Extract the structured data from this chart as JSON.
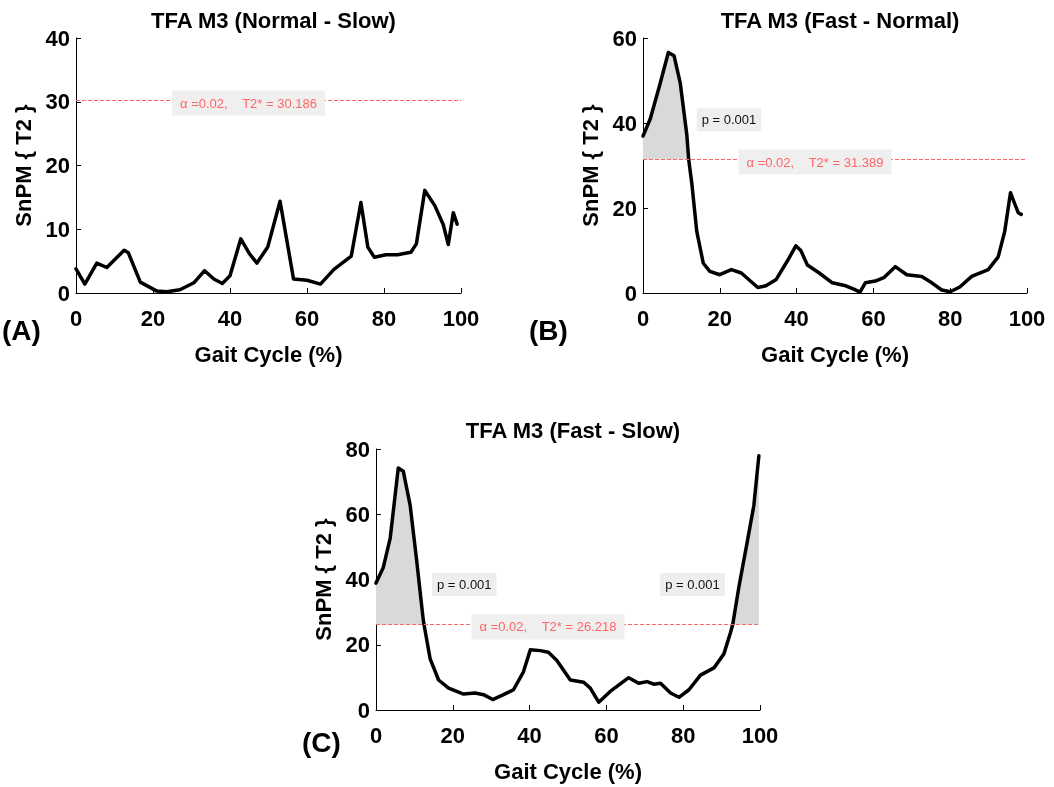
{
  "chart_data": [
    {
      "type": "line",
      "title": "TFA M3 (Normal - Slow)",
      "xlabel": "Gait Cycle (%)",
      "ylabel": "SnPM { T2 }",
      "marker": "none",
      "line_style": "solid",
      "x": [
        0,
        2.3,
        5.4,
        8,
        12.5,
        13.6,
        16.7,
        21,
        23.6,
        27,
        30.6,
        33.4,
        35.8,
        38,
        40,
        42.8,
        45,
        47,
        49.8,
        53,
        56.5,
        60,
        63.5,
        67,
        71.5,
        74,
        75.8,
        77.5,
        80.5,
        83.5,
        87,
        88.4,
        90.6,
        93.2,
        95.4,
        96.7,
        98,
        99
      ],
      "series": [
        {
          "color": "#000000",
          "values": [
            3.8,
            1.4,
            4.7,
            4,
            6.7,
            6.3,
            1.7,
            0.3,
            0.2,
            0.5,
            1.6,
            3.5,
            2.2,
            1.5,
            2.7,
            8.5,
            6.2,
            4.7,
            7.2,
            14.4,
            2.2,
            2,
            1.4,
            3.7,
            5.8,
            14.2,
            7.2,
            5.6,
            6,
            6,
            6.4,
            7.7,
            16.1,
            13.7,
            10.7,
            7.6,
            12.6,
            10.8
          ]
        }
      ],
      "xlim": [
        0,
        100
      ],
      "xticks": [
        0,
        20,
        40,
        60,
        80,
        100
      ],
      "ylim": [
        0,
        40
      ],
      "yticks": [
        0,
        10,
        20,
        30,
        40
      ],
      "ref_lines": [
        {
          "axis": "y",
          "value": 30.186,
          "label": "α =0.02,    T2* = 30.186",
          "color": "#ff6666",
          "line_style": "dashed"
        }
      ],
      "annotations": [
        "(A)"
      ]
    },
    {
      "type": "line",
      "title": "TFA M3 (Fast - Normal)",
      "xlabel": "Gait Cycle (%)",
      "ylabel": "SnPM { T2 }",
      "marker": "none",
      "line_style": "solid",
      "x": [
        0,
        1.9,
        4.5,
        6.6,
        8.1,
        9.7,
        11.4,
        11.9,
        12.7,
        14,
        15.7,
        17.4,
        20,
        23,
        25.6,
        29.9,
        32,
        34.7,
        37.7,
        39.8,
        41.1,
        42.8,
        45.9,
        49.3,
        52.8,
        54.9,
        56.5,
        57.9,
        60.5,
        62.7,
        65.7,
        68.7,
        72.6,
        75.2,
        77.8,
        80,
        82.5,
        85.6,
        89.9,
        92.5,
        94.2,
        95.7,
        96.8,
        97.7,
        98.5
      ],
      "series": [
        {
          "color": "#000000",
          "values": [
            36.9,
            41,
            49.4,
            56.6,
            55.8,
            49.4,
            37.3,
            31.4,
            25.9,
            14.5,
            7,
            5.1,
            4.3,
            5.5,
            4.7,
            1.3,
            1.7,
            3.2,
            7.7,
            11.1,
            10,
            6.6,
            4.7,
            2.4,
            1.7,
            0.9,
            0.2,
            2.4,
            2.8,
            3.6,
            6.2,
            4.3,
            3.9,
            2.4,
            0.7,
            0.3,
            1.4,
            3.9,
            5.5,
            8.5,
            14.5,
            23.6,
            21,
            18.9,
            18.5
          ],
          "lower": [
            31.4,
            31.4,
            31.4,
            31.4,
            31.4,
            31.4,
            31.4,
            31.4,
            null,
            null,
            null,
            null,
            null,
            null,
            null,
            null,
            null,
            null,
            null,
            null,
            null,
            null,
            null,
            null,
            null,
            null,
            null,
            null,
            null,
            null,
            null,
            null,
            null,
            null,
            null,
            null,
            null,
            null,
            null,
            null,
            null,
            null,
            null,
            null,
            null
          ],
          "upper": [
            36.9,
            41,
            49.4,
            56.6,
            55.8,
            49.4,
            37.3,
            31.4,
            null,
            null,
            null,
            null,
            null,
            null,
            null,
            null,
            null,
            null,
            null,
            null,
            null,
            null,
            null,
            null,
            null,
            null,
            null,
            null,
            null,
            null,
            null,
            null,
            null,
            null,
            null,
            null,
            null,
            null,
            null,
            null,
            null,
            null,
            null,
            null,
            null
          ]
        }
      ],
      "xlim": [
        0,
        100
      ],
      "xticks": [
        0,
        20,
        40,
        60,
        80,
        100
      ],
      "ylim": [
        0,
        60
      ],
      "yticks": [
        0,
        20,
        40,
        60
      ],
      "ref_lines": [
        {
          "axis": "y",
          "value": 31.389,
          "label": "α =0.02,    T2* = 31.389",
          "color": "#ff6666",
          "line_style": "dashed"
        }
      ],
      "annotations": [
        "(B)",
        "p = 0.001"
      ]
    },
    {
      "type": "line",
      "title": "TFA M3 (Fast - Slow)",
      "xlabel": "Gait Cycle (%)",
      "ylabel": "SnPM { T2 }",
      "marker": "none",
      "line_style": "solid",
      "x": [
        0,
        1.9,
        3.7,
        5.8,
        7.1,
        8.9,
        10.6,
        12.3,
        12.5,
        14.1,
        16.3,
        18.9,
        22.8,
        25.8,
        28,
        30.4,
        33.2,
        35.8,
        38.4,
        40.2,
        42.8,
        44.9,
        47.1,
        50.6,
        54.1,
        55.8,
        58,
        61,
        65.8,
        68.4,
        70.6,
        72.3,
        74.1,
        76.7,
        78.9,
        81.5,
        84.5,
        88,
        90.6,
        92.3,
        92.9,
        94.5,
        96.7,
        98.4,
        99.7
      ],
      "series": [
        {
          "color": "#000000",
          "values": [
            38.9,
            43.7,
            52.7,
            74.2,
            73.2,
            62.7,
            45.7,
            27.7,
            26.2,
            15.7,
            9.2,
            6.7,
            4.9,
            5.2,
            4.7,
            3.2,
            4.7,
            6.2,
            11.7,
            18.5,
            18.2,
            17.7,
            15.2,
            9.2,
            8.5,
            6.7,
            2.4,
            5.7,
            9.9,
            8.2,
            8.7,
            7.9,
            8.2,
            5.2,
            3.9,
            6.2,
            10.7,
            12.9,
            17.2,
            23.7,
            26.2,
            37.7,
            51.7,
            62.7,
            77.9
          ],
          "lower": [
            26.2,
            26.2,
            26.2,
            26.2,
            26.2,
            26.2,
            26.2,
            26.2,
            26.2,
            null,
            null,
            null,
            null,
            null,
            null,
            null,
            null,
            null,
            null,
            null,
            null,
            null,
            null,
            null,
            null,
            null,
            null,
            null,
            null,
            null,
            null,
            null,
            null,
            null,
            null,
            null,
            null,
            null,
            null,
            null,
            26.2,
            26.2,
            26.2,
            26.2,
            26.2
          ],
          "upper": [
            38.9,
            43.7,
            52.7,
            74.2,
            73.2,
            62.7,
            45.7,
            27.7,
            26.2,
            null,
            null,
            null,
            null,
            null,
            null,
            null,
            null,
            null,
            null,
            null,
            null,
            null,
            null,
            null,
            null,
            null,
            null,
            null,
            null,
            null,
            null,
            null,
            null,
            null,
            null,
            null,
            null,
            null,
            null,
            null,
            26.2,
            37.7,
            51.7,
            62.7,
            77.9
          ]
        }
      ],
      "xlim": [
        0,
        100
      ],
      "xticks": [
        0,
        20,
        40,
        60,
        80,
        100
      ],
      "ylim": [
        0,
        80
      ],
      "yticks": [
        0,
        20,
        40,
        60,
        80
      ],
      "ref_lines": [
        {
          "axis": "y",
          "value": 26.218,
          "label": "α =0.02,    T2* = 26.218",
          "color": "#ff6666",
          "line_style": "dashed"
        }
      ],
      "annotations": [
        "(C)",
        "p = 0.001",
        "p = 0.001"
      ]
    }
  ]
}
